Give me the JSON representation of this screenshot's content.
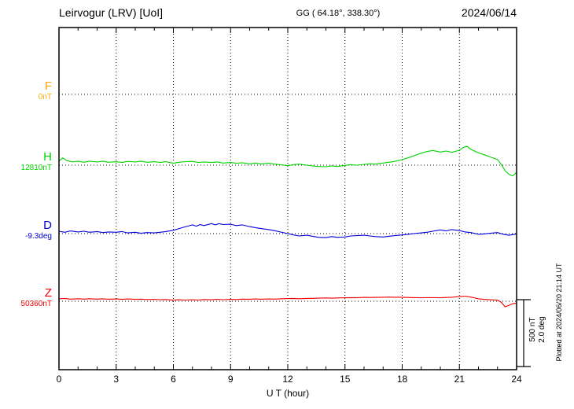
{
  "header": {
    "station": "Leirvogur (LRV)  [UoI]",
    "coords": "GG ( 64.18°, 338.30°)",
    "date": "2024/06/14"
  },
  "axes": {
    "xlabel": "U T (hour)"
  },
  "scale_bar": {
    "line1": "500 nT",
    "line2": "2.0 deg"
  },
  "footer_note": "Plotted at 2024/06/20 21:14 UT",
  "chart_data": {
    "type": "line",
    "title": "Leirvogur (LRV)  [UoI]",
    "subtitle": "GG ( 64.18°, 338.30°)",
    "date": "2024/06/14",
    "xlabel": "U T (hour)",
    "x_unit": "hour UT",
    "x_range": [
      0,
      24
    ],
    "x_ticks": [
      0,
      3,
      6,
      9,
      12,
      15,
      18,
      21,
      24
    ],
    "grid": "dotted",
    "scale": {
      "nT_per_div": 500,
      "deg_per_div": 2.0
    },
    "series": [
      {
        "name": "F",
        "unit": "nT",
        "baseline_label": "0nT",
        "baseline_value": 0,
        "color": "#ffa800",
        "points": []
      },
      {
        "name": "H",
        "unit": "nT",
        "baseline_label": "12810nT",
        "baseline_value": 12810,
        "color": "#00d400",
        "points": [
          [
            0,
            30
          ],
          [
            0.2,
            55
          ],
          [
            0.4,
            35
          ],
          [
            0.7,
            25
          ],
          [
            1,
            30
          ],
          [
            1.3,
            22
          ],
          [
            1.6,
            30
          ],
          [
            2,
            24
          ],
          [
            2.3,
            30
          ],
          [
            2.6,
            22
          ],
          [
            3,
            26
          ],
          [
            3.3,
            20
          ],
          [
            3.6,
            28
          ],
          [
            4,
            24
          ],
          [
            4.3,
            30
          ],
          [
            4.6,
            22
          ],
          [
            5,
            26
          ],
          [
            5.3,
            20
          ],
          [
            5.6,
            26
          ],
          [
            6,
            14
          ],
          [
            6.3,
            22
          ],
          [
            6.6,
            26
          ],
          [
            7,
            28
          ],
          [
            7.3,
            20
          ],
          [
            7.6,
            24
          ],
          [
            8,
            20
          ],
          [
            8.3,
            24
          ],
          [
            8.6,
            16
          ],
          [
            9,
            20
          ],
          [
            9.3,
            14
          ],
          [
            9.6,
            18
          ],
          [
            10,
            10
          ],
          [
            10.3,
            16
          ],
          [
            10.6,
            10
          ],
          [
            11,
            14
          ],
          [
            11.3,
            8
          ],
          [
            11.6,
            4
          ],
          [
            12,
            -4
          ],
          [
            12.3,
            4
          ],
          [
            12.6,
            8
          ],
          [
            13,
            0
          ],
          [
            13.3,
            -6
          ],
          [
            13.6,
            -10
          ],
          [
            14,
            -12
          ],
          [
            14.3,
            -6
          ],
          [
            14.6,
            -10
          ],
          [
            15,
            -2
          ],
          [
            15.3,
            4
          ],
          [
            15.6,
            0
          ],
          [
            16,
            6
          ],
          [
            16.3,
            10
          ],
          [
            16.6,
            8
          ],
          [
            17,
            16
          ],
          [
            17.3,
            22
          ],
          [
            17.6,
            28
          ],
          [
            18,
            42
          ],
          [
            18.3,
            55
          ],
          [
            18.6,
            70
          ],
          [
            19,
            90
          ],
          [
            19.3,
            102
          ],
          [
            19.6,
            110
          ],
          [
            20,
            98
          ],
          [
            20.3,
            106
          ],
          [
            20.6,
            96
          ],
          [
            21,
            112
          ],
          [
            21.2,
            132
          ],
          [
            21.4,
            142
          ],
          [
            21.6,
            118
          ],
          [
            22,
            92
          ],
          [
            22.3,
            78
          ],
          [
            22.6,
            62
          ],
          [
            23,
            42
          ],
          [
            23.2,
            5
          ],
          [
            23.4,
            -42
          ],
          [
            23.6,
            -68
          ],
          [
            23.8,
            -80
          ],
          [
            24,
            -52
          ]
        ]
      },
      {
        "name": "D",
        "unit": "deg",
        "baseline_label": "-9.3deg",
        "baseline_value": -9.3,
        "color": "#0000dd",
        "points": [
          [
            0,
            0.07
          ],
          [
            0.3,
            0.04
          ],
          [
            0.6,
            0.08
          ],
          [
            1,
            0.05
          ],
          [
            1.3,
            0.07
          ],
          [
            1.6,
            0.04
          ],
          [
            2,
            0.06
          ],
          [
            2.3,
            0.03
          ],
          [
            2.6,
            0.05
          ],
          [
            3,
            0.04
          ],
          [
            3.3,
            0.06
          ],
          [
            3.6,
            0.02
          ],
          [
            4,
            0.04
          ],
          [
            4.3,
            0.01
          ],
          [
            4.6,
            0.03
          ],
          [
            5,
            0.02
          ],
          [
            5.3,
            0.04
          ],
          [
            5.6,
            0.06
          ],
          [
            6,
            0.1
          ],
          [
            6.3,
            0.15
          ],
          [
            6.6,
            0.2
          ],
          [
            7,
            0.26
          ],
          [
            7.2,
            0.22
          ],
          [
            7.4,
            0.27
          ],
          [
            7.6,
            0.24
          ],
          [
            8,
            0.3
          ],
          [
            8.2,
            0.26
          ],
          [
            8.4,
            0.3
          ],
          [
            8.6,
            0.27
          ],
          [
            9,
            0.28
          ],
          [
            9.3,
            0.24
          ],
          [
            9.6,
            0.26
          ],
          [
            10,
            0.21
          ],
          [
            10.3,
            0.18
          ],
          [
            10.6,
            0.15
          ],
          [
            11,
            0.12
          ],
          [
            11.3,
            0.09
          ],
          [
            11.6,
            0.05
          ],
          [
            12,
            0.0
          ],
          [
            12.3,
            -0.04
          ],
          [
            12.6,
            -0.07
          ],
          [
            13,
            -0.05
          ],
          [
            13.3,
            -0.08
          ],
          [
            13.6,
            -0.11
          ],
          [
            14,
            -0.12
          ],
          [
            14.3,
            -0.09
          ],
          [
            14.6,
            -0.11
          ],
          [
            15,
            -0.1
          ],
          [
            15.3,
            -0.07
          ],
          [
            15.6,
            -0.06
          ],
          [
            16,
            -0.05
          ],
          [
            16.3,
            -0.07
          ],
          [
            16.6,
            -0.09
          ],
          [
            17,
            -0.1
          ],
          [
            17.3,
            -0.08
          ],
          [
            17.6,
            -0.06
          ],
          [
            18,
            -0.04
          ],
          [
            18.3,
            -0.02
          ],
          [
            18.6,
            0.0
          ],
          [
            19,
            0.02
          ],
          [
            19.3,
            0.04
          ],
          [
            19.6,
            0.07
          ],
          [
            20,
            0.11
          ],
          [
            20.3,
            0.08
          ],
          [
            20.6,
            0.12
          ],
          [
            21,
            0.09
          ],
          [
            21.3,
            0.05
          ],
          [
            21.6,
            0.03
          ],
          [
            22,
            -0.02
          ],
          [
            22.3,
            -0.01
          ],
          [
            22.6,
            0.01
          ],
          [
            23,
            0.03
          ],
          [
            23.3,
            -0.02
          ],
          [
            23.6,
            -0.05
          ],
          [
            24,
            -0.01
          ]
        ]
      },
      {
        "name": "Z",
        "unit": "nT",
        "baseline_label": "50360nT",
        "baseline_value": 50360,
        "color": "#ee0000",
        "points": [
          [
            0,
            18
          ],
          [
            0.3,
            21
          ],
          [
            0.6,
            16
          ],
          [
            1,
            19
          ],
          [
            1.3,
            16
          ],
          [
            1.6,
            19
          ],
          [
            2,
            16
          ],
          [
            2.3,
            18
          ],
          [
            2.6,
            15
          ],
          [
            3,
            17
          ],
          [
            3.3,
            14
          ],
          [
            3.6,
            17
          ],
          [
            4,
            14
          ],
          [
            4.3,
            16
          ],
          [
            4.6,
            13
          ],
          [
            5,
            14
          ],
          [
            5.3,
            12
          ],
          [
            5.6,
            13
          ],
          [
            6,
            8
          ],
          [
            6.3,
            11
          ],
          [
            6.6,
            9
          ],
          [
            7,
            11
          ],
          [
            7.3,
            9
          ],
          [
            7.6,
            13
          ],
          [
            8,
            11
          ],
          [
            8.3,
            14
          ],
          [
            8.6,
            12
          ],
          [
            9,
            14
          ],
          [
            9.3,
            13
          ],
          [
            9.6,
            16
          ],
          [
            10,
            15
          ],
          [
            10.3,
            17
          ],
          [
            10.6,
            15
          ],
          [
            11,
            17
          ],
          [
            11.3,
            16
          ],
          [
            11.6,
            18
          ],
          [
            12,
            20
          ],
          [
            12.3,
            21
          ],
          [
            12.6,
            19
          ],
          [
            13,
            21
          ],
          [
            13.3,
            22
          ],
          [
            13.6,
            23
          ],
          [
            14,
            25
          ],
          [
            14.3,
            23
          ],
          [
            14.6,
            25
          ],
          [
            15,
            26
          ],
          [
            15.3,
            27
          ],
          [
            15.6,
            26
          ],
          [
            16,
            29
          ],
          [
            16.3,
            28
          ],
          [
            16.6,
            29
          ],
          [
            17,
            30
          ],
          [
            17.3,
            31
          ],
          [
            17.6,
            30
          ],
          [
            18,
            30
          ],
          [
            18.3,
            28
          ],
          [
            18.6,
            27
          ],
          [
            19,
            26
          ],
          [
            19.3,
            27
          ],
          [
            19.6,
            27
          ],
          [
            20,
            26
          ],
          [
            20.3,
            28
          ],
          [
            20.6,
            30
          ],
          [
            21,
            35
          ],
          [
            21.3,
            38
          ],
          [
            21.6,
            31
          ],
          [
            22,
            18
          ],
          [
            22.3,
            14
          ],
          [
            22.6,
            11
          ],
          [
            23,
            8
          ],
          [
            23.2,
            -8
          ],
          [
            23.4,
            -42
          ],
          [
            23.6,
            -30
          ],
          [
            23.8,
            -18
          ],
          [
            24,
            -14
          ]
        ]
      }
    ]
  }
}
